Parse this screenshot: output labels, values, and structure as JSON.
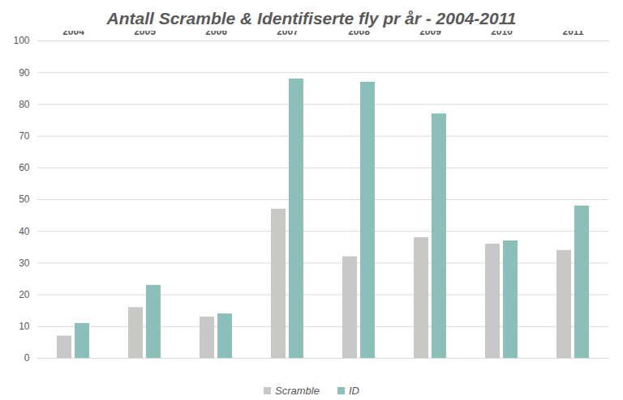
{
  "chart_data": {
    "type": "bar",
    "title": "Antall Scramble & Identifiserte fly pr år - 2004-2011",
    "categories": [
      "2004",
      "2005",
      "2006",
      "2007",
      "2008",
      "2009",
      "2010",
      "2011"
    ],
    "series": [
      {
        "name": "Scramble",
        "color": "#c8c8c6",
        "values": [
          7,
          16,
          13,
          47,
          32,
          38,
          36,
          34
        ]
      },
      {
        "name": "ID",
        "color": "#8bbfba",
        "values": [
          11,
          23,
          14,
          88,
          87,
          77,
          37,
          48
        ]
      }
    ],
    "ylim": [
      0,
      100
    ],
    "yticks": [
      0,
      10,
      20,
      30,
      40,
      50,
      60,
      70,
      80,
      90,
      100
    ],
    "grid": true,
    "legend": "bottom"
  }
}
